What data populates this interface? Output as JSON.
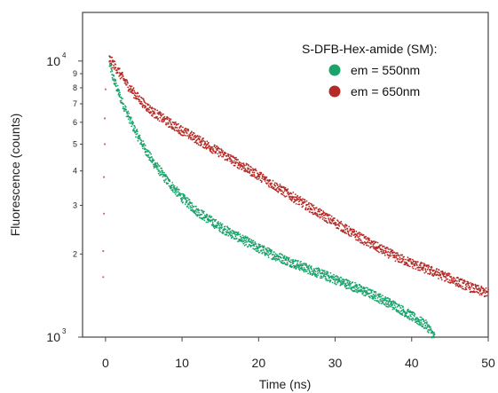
{
  "chart_data": {
    "type": "scatter",
    "xlabel": "Time (ns)",
    "ylabel": "Fluorescence (counts)",
    "xlim": [
      -3,
      50
    ],
    "ylim": [
      1000,
      15000
    ],
    "yscale": "log",
    "x_ticks": [
      "0",
      "10",
      "20",
      "30",
      "40",
      "50"
    ],
    "y_major_ticks": [
      {
        "value": 1000,
        "base": "10",
        "exp": "3"
      },
      {
        "value": 10000,
        "base": "10",
        "exp": "4"
      }
    ],
    "y_minor_labels": [
      "2",
      "3",
      "4",
      "5",
      "6",
      "7",
      "8",
      "9"
    ],
    "legend": {
      "title": "S-DFB-Hex-amide (SM):",
      "position": "top-right"
    },
    "series": [
      {
        "name": "em = 550nm",
        "color": "#1aa36b",
        "points": [
          [
            0.5,
            9800
          ],
          [
            1,
            8700
          ],
          [
            2,
            7300
          ],
          [
            3,
            6300
          ],
          [
            4,
            5500
          ],
          [
            5,
            4900
          ],
          [
            6,
            4400
          ],
          [
            8,
            3700
          ],
          [
            10,
            3200
          ],
          [
            12,
            2850
          ],
          [
            15,
            2500
          ],
          [
            18,
            2250
          ],
          [
            20,
            2100
          ],
          [
            22,
            1980
          ],
          [
            25,
            1830
          ],
          [
            28,
            1700
          ],
          [
            30,
            1620
          ],
          [
            32,
            1540
          ],
          [
            35,
            1420
          ],
          [
            38,
            1290
          ],
          [
            40,
            1190
          ],
          [
            42,
            1100
          ],
          [
            43,
            1000
          ]
        ]
      },
      {
        "name": "em = 650nm",
        "color": "#b52a25",
        "points": [
          [
            0.5,
            10200
          ],
          [
            1,
            9800
          ],
          [
            2,
            8900
          ],
          [
            3,
            8100
          ],
          [
            4,
            7500
          ],
          [
            5,
            7000
          ],
          [
            6,
            6600
          ],
          [
            8,
            6050
          ],
          [
            10,
            5600
          ],
          [
            12,
            5200
          ],
          [
            15,
            4650
          ],
          [
            18,
            4150
          ],
          [
            20,
            3850
          ],
          [
            22,
            3550
          ],
          [
            25,
            3150
          ],
          [
            28,
            2800
          ],
          [
            30,
            2600
          ],
          [
            32,
            2400
          ],
          [
            35,
            2150
          ],
          [
            38,
            1950
          ],
          [
            40,
            1850
          ],
          [
            42,
            1760
          ],
          [
            45,
            1630
          ],
          [
            48,
            1500
          ],
          [
            50,
            1440
          ]
        ]
      }
    ],
    "irf": {
      "color": "#b52a25",
      "points": [
        [
          -0.3,
          1650
        ],
        [
          -0.3,
          2050
        ],
        [
          -0.2,
          2800
        ],
        [
          -0.2,
          3800
        ],
        [
          -0.1,
          5000
        ],
        [
          -0.1,
          6200
        ],
        [
          0,
          7900
        ]
      ]
    },
    "grid": false
  }
}
